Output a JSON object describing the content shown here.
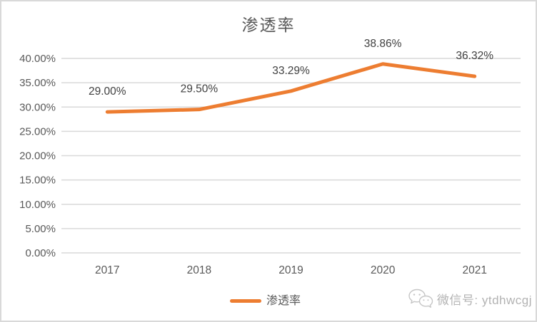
{
  "chart_data": {
    "type": "line",
    "title": "渗透率",
    "categories": [
      "2017",
      "2018",
      "2019",
      "2020",
      "2021"
    ],
    "series": [
      {
        "name": "渗透率",
        "values": [
          29.0,
          29.5,
          33.29,
          38.86,
          36.32
        ],
        "data_labels": [
          "29.00%",
          "29.50%",
          "33.29%",
          "38.86%",
          "36.32%"
        ],
        "color": "#ED7D31"
      }
    ],
    "ylim": [
      0,
      40
    ],
    "y_ticks": [
      {
        "value": 0,
        "label": "0.00%"
      },
      {
        "value": 5,
        "label": "5.00%"
      },
      {
        "value": 10,
        "label": "10.00%"
      },
      {
        "value": 15,
        "label": "15.00%"
      },
      {
        "value": 20,
        "label": "20.00%"
      },
      {
        "value": 25,
        "label": "25.00%"
      },
      {
        "value": 30,
        "label": "30.00%"
      },
      {
        "value": 35,
        "label": "35.00%"
      },
      {
        "value": 40,
        "label": "40.00%"
      }
    ],
    "grid": true,
    "legend_position": "bottom",
    "colors": {
      "line": "#ED7D31",
      "grid": "#D9D9D9",
      "axis_text": "#595959",
      "data_label_text": "#404040",
      "title_text": "#595959",
      "border": "#D9D9D9",
      "watermark_text": "#B3B3B3"
    }
  },
  "watermark": {
    "icon": "wechat-icon",
    "label": "微信号: ytdhwcgj"
  }
}
